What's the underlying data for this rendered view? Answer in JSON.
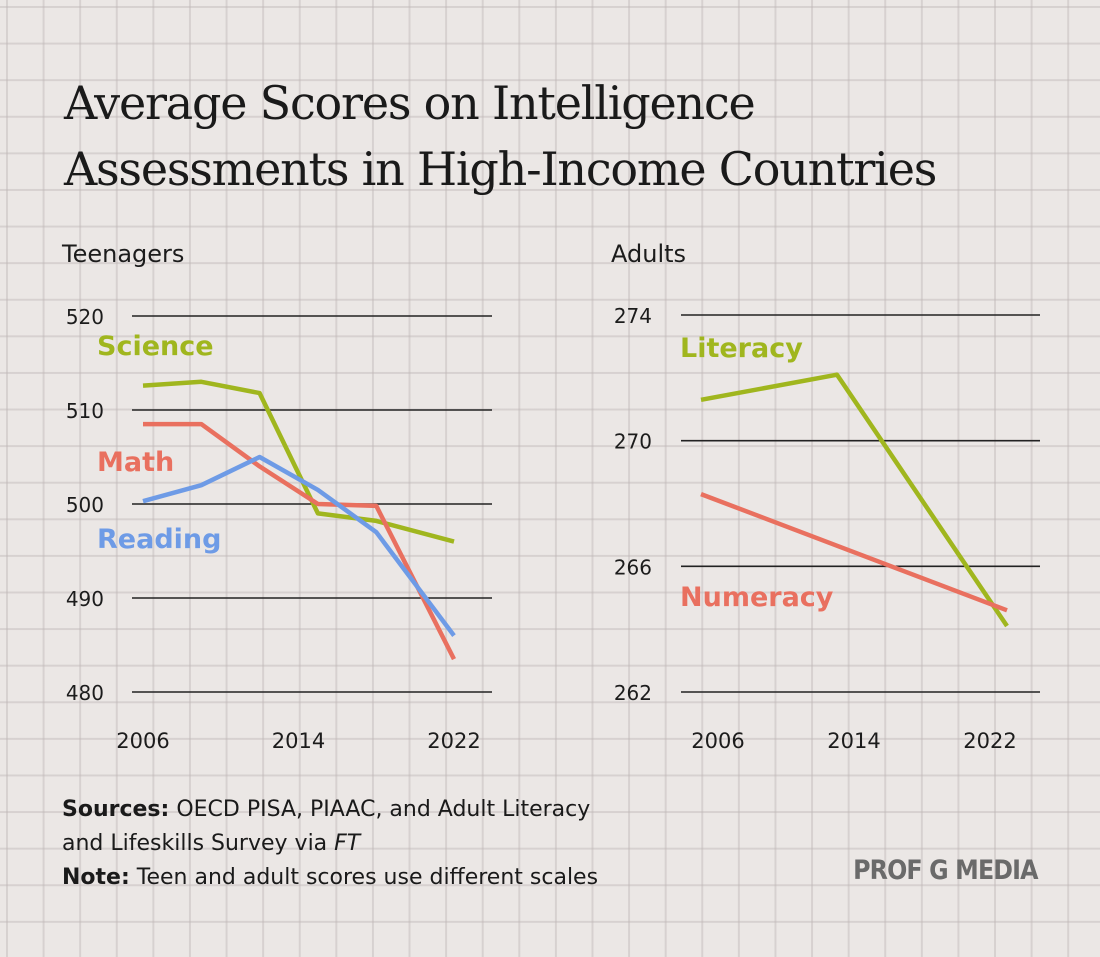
{
  "title_line1": "Average Scores on Intelligence",
  "title_line2": "Assessments in High-Income Countries",
  "colors": {
    "green": "#a0b61e",
    "red": "#e9705f",
    "blue": "#6e9be6",
    "grid": "#222222",
    "text": "#1c1c1c"
  },
  "chart_data": [
    {
      "type": "line",
      "title": "Teenagers",
      "x_ticks": [
        "2006",
        "2014",
        "2022"
      ],
      "y_ticks": [
        "520",
        "510",
        "500",
        "490",
        "480"
      ],
      "ylim": [
        480,
        520
      ],
      "series": [
        {
          "name": "Science",
          "color": "#a0b61e",
          "x": [
            2006,
            2009,
            2012,
            2015,
            2018,
            2022
          ],
          "y": [
            512.6,
            513.0,
            511.8,
            499.0,
            498.2,
            496.0
          ]
        },
        {
          "name": "Math",
          "color": "#e9705f",
          "x": [
            2006,
            2009,
            2012,
            2015,
            2018,
            2022
          ],
          "y": [
            508.5,
            508.5,
            504.0,
            500.0,
            499.8,
            483.5
          ]
        },
        {
          "name": "Reading",
          "color": "#6e9be6",
          "x": [
            2006,
            2009,
            2012,
            2015,
            2018,
            2022
          ],
          "y": [
            500.3,
            502.0,
            505.0,
            501.5,
            497.0,
            486.0
          ]
        }
      ]
    },
    {
      "type": "line",
      "title": "Adults",
      "x_ticks": [
        "2006",
        "2014",
        "2022"
      ],
      "y_ticks": [
        "274",
        "270",
        "266",
        "262"
      ],
      "ylim": [
        262,
        274
      ],
      "series": [
        {
          "name": "Literacy",
          "color": "#a0b61e",
          "x": [
            2005,
            2013,
            2023
          ],
          "y": [
            271.3,
            272.1,
            264.1
          ]
        },
        {
          "name": "Numeracy",
          "color": "#e9705f",
          "x": [
            2005,
            2023
          ],
          "y": [
            268.3,
            264.6
          ]
        }
      ]
    }
  ],
  "footer": {
    "sources_label": "Sources:",
    "sources_text": " OECD PISA, PIAAC, and Adult Literacy",
    "sources_text2": "and Lifeskills Survey via ",
    "sources_ft": "FT",
    "note_label": "Note:",
    "note_text": " Teen and adult scores use different scales"
  },
  "brand": "PROF G MEDIA"
}
